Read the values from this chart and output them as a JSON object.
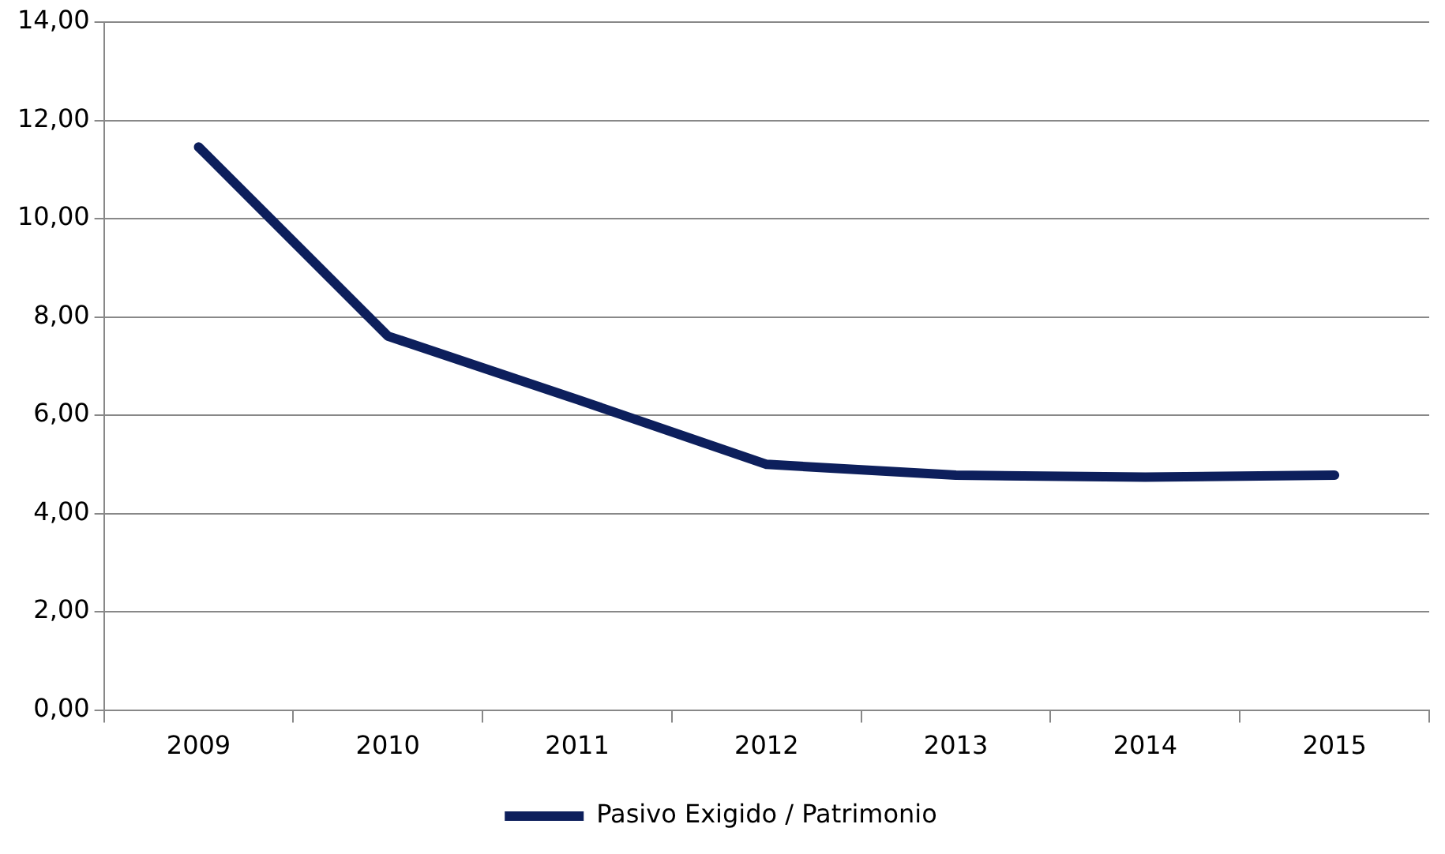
{
  "chart_data": {
    "type": "line",
    "categories": [
      "2009",
      "2010",
      "2011",
      "2012",
      "2013",
      "2014",
      "2015"
    ],
    "series": [
      {
        "name": "Pasivo Exigido / Patrimonio",
        "color": "#0d1f5c",
        "values": [
          11.46,
          7.61,
          6.32,
          5.0,
          4.78,
          4.74,
          4.78
        ]
      }
    ],
    "ylim": [
      0,
      14
    ],
    "yticks": [
      {
        "value": 0,
        "label": "0,00"
      },
      {
        "value": 2,
        "label": "2,00"
      },
      {
        "value": 4,
        "label": "4,00"
      },
      {
        "value": 6,
        "label": "6,00"
      },
      {
        "value": 8,
        "label": "8,00"
      },
      {
        "value": 10,
        "label": "10,00"
      },
      {
        "value": 12,
        "label": "12,00"
      },
      {
        "value": 14,
        "label": "14,00"
      }
    ],
    "grid": "y",
    "legend": "bottom",
    "marker": "none",
    "line_style": "solid"
  }
}
